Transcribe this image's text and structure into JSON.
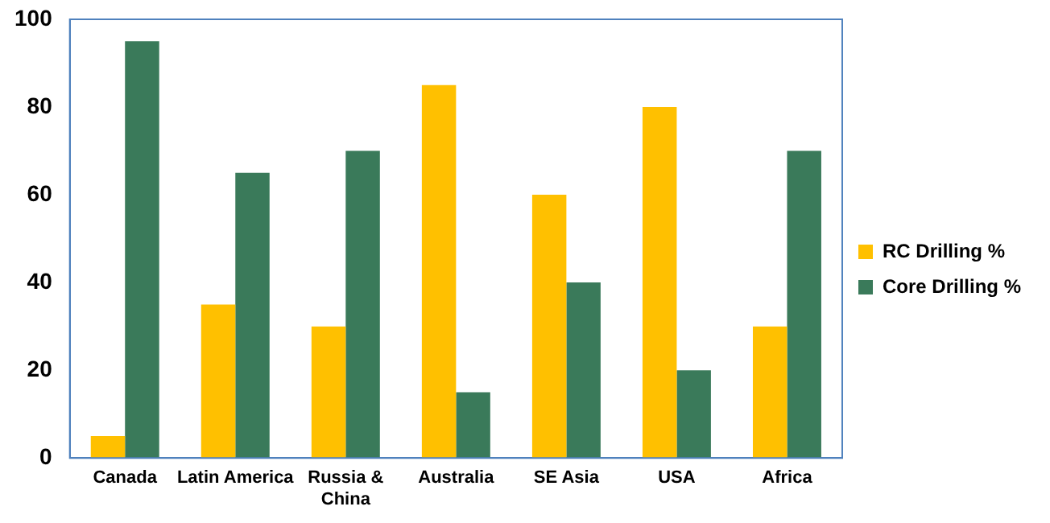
{
  "chart_data": {
    "type": "bar",
    "categories": [
      "Canada",
      "Latin America",
      "Russia & China",
      "Australia",
      "SE Asia",
      "USA",
      "Africa"
    ],
    "series": [
      {
        "name": "RC Drilling %",
        "color": "#ffc000",
        "values": [
          5,
          35,
          30,
          85,
          60,
          80,
          30
        ]
      },
      {
        "name": "Core Drilling %",
        "color": "#3a7a5a",
        "values": [
          95,
          65,
          70,
          15,
          40,
          20,
          70
        ]
      }
    ],
    "ylim": [
      0,
      100
    ],
    "yticks": [
      0,
      20,
      40,
      60,
      80,
      100
    ],
    "grid": false,
    "legend": "right"
  }
}
